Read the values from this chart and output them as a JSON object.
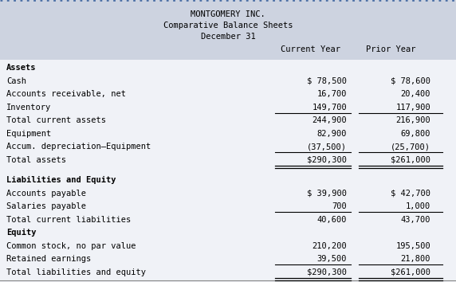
{
  "title_lines": [
    "MONTGOMERY INC.",
    "Comparative Balance Sheets",
    "December 31"
  ],
  "col_headers": [
    "Current Year",
    "Prior Year"
  ],
  "header_bg": "#cdd3e0",
  "body_bg": "#f0f2f7",
  "white_bg": "#ffffff",
  "top_border_color": "#4a6fa5",
  "font_family": "monospace",
  "fig_w": 5.72,
  "fig_h": 3.54,
  "dpi": 100,
  "rows": [
    {
      "label": "Assets",
      "cur": "",
      "prior": "",
      "bold": true,
      "ul_cur": false,
      "ul_prior": false,
      "dul_cur": false,
      "dul_prior": false,
      "spacer": false
    },
    {
      "label": "Cash",
      "cur": "$ 78,500",
      "prior": "$ 78,600",
      "bold": false,
      "ul_cur": false,
      "ul_prior": false,
      "dul_cur": false,
      "dul_prior": false,
      "spacer": false
    },
    {
      "label": "Accounts receivable, net",
      "cur": "16,700",
      "prior": "20,400",
      "bold": false,
      "ul_cur": false,
      "ul_prior": false,
      "dul_cur": false,
      "dul_prior": false,
      "spacer": false
    },
    {
      "label": "Inventory",
      "cur": "149,700",
      "prior": "117,900",
      "bold": false,
      "ul_cur": true,
      "ul_prior": true,
      "dul_cur": false,
      "dul_prior": false,
      "spacer": false
    },
    {
      "label": "Total current assets",
      "cur": "244,900",
      "prior": "216,900",
      "bold": false,
      "ul_cur": false,
      "ul_prior": false,
      "dul_cur": false,
      "dul_prior": false,
      "spacer": false
    },
    {
      "label": "Equipment",
      "cur": "82,900",
      "prior": "69,800",
      "bold": false,
      "ul_cur": false,
      "ul_prior": false,
      "dul_cur": false,
      "dul_prior": false,
      "spacer": false
    },
    {
      "label": "Accum. depreciation–Equipment",
      "cur": "(37,500)",
      "prior": "(25,700)",
      "bold": false,
      "ul_cur": true,
      "ul_prior": true,
      "dul_cur": false,
      "dul_prior": false,
      "spacer": false
    },
    {
      "label": "Total assets",
      "cur": "$290,300",
      "prior": "$261,000",
      "bold": false,
      "ul_cur": false,
      "ul_prior": false,
      "dul_cur": true,
      "dul_prior": true,
      "spacer": false
    },
    {
      "label": "",
      "cur": "",
      "prior": "",
      "bold": false,
      "ul_cur": false,
      "ul_prior": false,
      "dul_cur": false,
      "dul_prior": false,
      "spacer": true
    },
    {
      "label": "Liabilities and Equity",
      "cur": "",
      "prior": "",
      "bold": true,
      "ul_cur": false,
      "ul_prior": false,
      "dul_cur": false,
      "dul_prior": false,
      "spacer": false
    },
    {
      "label": "Accounts payable",
      "cur": "$ 39,900",
      "prior": "$ 42,700",
      "bold": false,
      "ul_cur": false,
      "ul_prior": false,
      "dul_cur": false,
      "dul_prior": false,
      "spacer": false
    },
    {
      "label": "Salaries payable",
      "cur": "700",
      "prior": "1,000",
      "bold": false,
      "ul_cur": true,
      "ul_prior": true,
      "dul_cur": false,
      "dul_prior": false,
      "spacer": false
    },
    {
      "label": "Total current liabilities",
      "cur": "40,600",
      "prior": "43,700",
      "bold": false,
      "ul_cur": false,
      "ul_prior": false,
      "dul_cur": false,
      "dul_prior": false,
      "spacer": false
    },
    {
      "label": "Equity",
      "cur": "",
      "prior": "",
      "bold": true,
      "ul_cur": false,
      "ul_prior": false,
      "dul_cur": false,
      "dul_prior": false,
      "spacer": false
    },
    {
      "label": "Common stock, no par value",
      "cur": "210,200",
      "prior": "195,500",
      "bold": false,
      "ul_cur": false,
      "ul_prior": false,
      "dul_cur": false,
      "dul_prior": false,
      "spacer": false
    },
    {
      "label": "Retained earnings",
      "cur": "39,500",
      "prior": "21,800",
      "bold": false,
      "ul_cur": true,
      "ul_prior": true,
      "dul_cur": false,
      "dul_prior": false,
      "spacer": false
    },
    {
      "label": "Total liabilities and equity",
      "cur": "$290,300",
      "prior": "$261,000",
      "bold": false,
      "ul_cur": false,
      "ul_prior": false,
      "dul_cur": true,
      "dul_prior": true,
      "spacer": false
    }
  ]
}
